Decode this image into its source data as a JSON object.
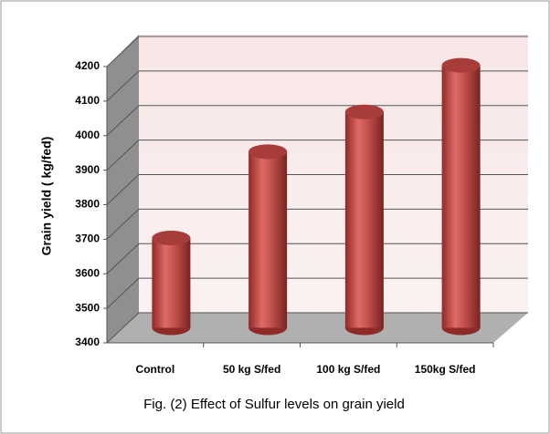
{
  "chart_data": {
    "type": "bar3d",
    "title": "Fig. (2) Effect of Sulfur levels on grain yield",
    "y_label": "Grain yield ( kg/fed)",
    "categories": [
      "Control",
      "50 kg S/fed",
      "100 kg S/fed",
      "150kg S/fed"
    ],
    "values": [
      3660,
      3910,
      4025,
      4160
    ],
    "color": "#c0504d",
    "ylim": [
      3400,
      4200
    ],
    "yticks": [
      3400,
      3500,
      3600,
      3700,
      3800,
      3900,
      4000,
      4100,
      4200
    ],
    "grid": true
  }
}
